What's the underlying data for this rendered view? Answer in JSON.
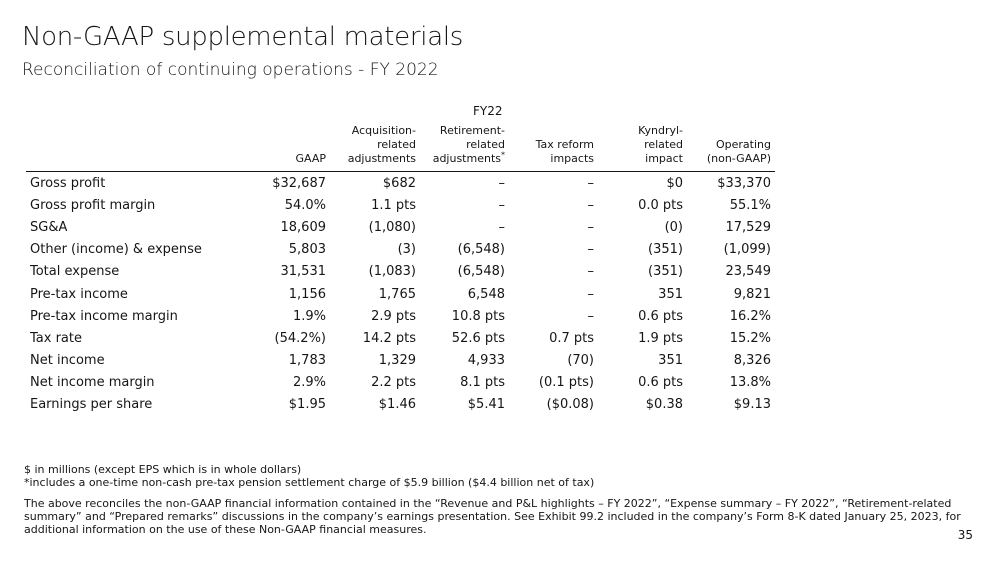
{
  "title": "Non-GAAP supplemental materials",
  "subtitle": "Reconciliation of continuing operations - FY 2022",
  "period": "FY22",
  "columns": [
    [
      "GAAP"
    ],
    [
      "Acquisition-",
      "related",
      "adjustments"
    ],
    [
      "Retirement-",
      "related",
      "adjustments"
    ],
    [
      "Tax reform",
      "impacts"
    ],
    [
      "Kyndryl-",
      "related",
      "impact"
    ],
    [
      "Operating",
      "(non-GAAP)"
    ]
  ],
  "footnote_marker": "*",
  "rows": [
    {
      "label": "Gross profit",
      "values": [
        "$32,687",
        "$682",
        "–",
        "–",
        "$0",
        "$33,370"
      ]
    },
    {
      "label": "Gross profit margin",
      "values": [
        "54.0%",
        "1.1 pts",
        "–",
        "–",
        "0.0 pts",
        "55.1%"
      ]
    },
    {
      "label": "SG&A",
      "values": [
        "18,609",
        "(1,080)",
        "–",
        "–",
        "(0)",
        "17,529"
      ]
    },
    {
      "label": "Other (income) & expense",
      "values": [
        "5,803",
        "(3)",
        "(6,548)",
        "–",
        "(351)",
        "(1,099)"
      ]
    },
    {
      "label": "Total expense",
      "values": [
        "31,531",
        "(1,083)",
        "(6,548)",
        "–",
        "(351)",
        "23,549"
      ]
    },
    {
      "label": "Pre-tax income",
      "values": [
        "1,156",
        "1,765",
        "6,548",
        "–",
        "351",
        "9,821"
      ]
    },
    {
      "label": "Pre-tax income margin",
      "values": [
        "1.9%",
        "2.9 pts",
        "10.8 pts",
        "–",
        "0.6 pts",
        "16.2%"
      ]
    },
    {
      "label": "Tax rate",
      "values": [
        "(54.2%)",
        "14.2 pts",
        "52.6 pts",
        "0.7 pts",
        "1.9 pts",
        "15.2%"
      ]
    },
    {
      "label": "Net income",
      "values": [
        "1,783",
        "1,329",
        "4,933",
        "(70)",
        "351",
        "8,326"
      ]
    },
    {
      "label": "Net income margin",
      "values": [
        "2.9%",
        "2.2 pts",
        "8.1 pts",
        "(0.1 pts)",
        "0.6 pts",
        "13.8%"
      ]
    },
    {
      "label": "Earnings per share",
      "values": [
        "$1.95",
        "$1.46",
        "$5.41",
        "($0.08)",
        "$0.38",
        "$9.13"
      ]
    }
  ],
  "footnotes": {
    "units": "$ in millions (except EPS which is in whole dollars)",
    "asterisk": "*includes a one-time non-cash pre-tax pension settlement charge of $5.9 billion ($4.4 billion net of tax)",
    "disclaimer": "The above reconciles the non-GAAP financial information contained in the “Revenue and P&L highlights – FY 2022”, “Expense summary – FY 2022”, “Retirement-related summary” and “Prepared remarks” discussions in the company’s earnings presentation.  See Exhibit 99.2 included in the company’s Form 8-K dated January 25, 2023, for additional information on the use of these Non-GAAP financial measures."
  },
  "page_number": "35"
}
